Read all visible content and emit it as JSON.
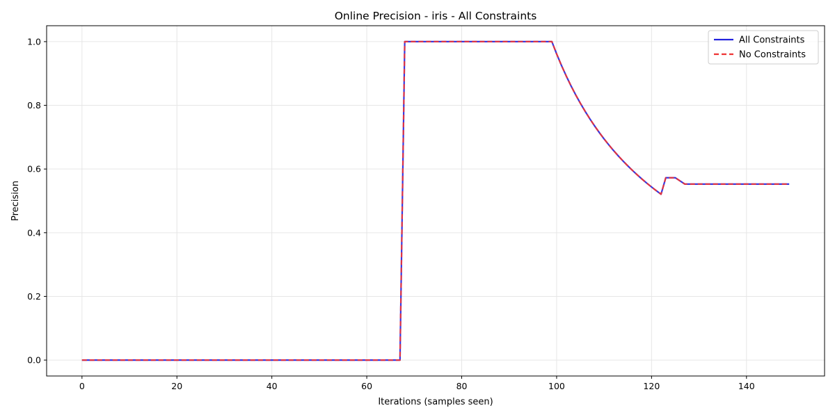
{
  "chart_data": {
    "type": "line",
    "title": "Online Precision - iris - All Constraints",
    "xlabel": "Iterations (samples seen)",
    "ylabel": "Precision",
    "xlim": [
      -7.45,
      156.45
    ],
    "ylim": [
      -0.05,
      1.05
    ],
    "xticks": [
      0,
      20,
      40,
      60,
      80,
      100,
      120,
      140
    ],
    "yticks": [
      0.0,
      0.2,
      0.4,
      0.6,
      0.8,
      1.0
    ],
    "xtick_labels": [
      "0",
      "20",
      "40",
      "60",
      "80",
      "100",
      "120",
      "140"
    ],
    "ytick_labels": [
      "0.0",
      "0.2",
      "0.4",
      "0.6",
      "0.8",
      "1.0"
    ],
    "grid": true,
    "legend_position": "top-right",
    "series": [
      {
        "name": "All Constraints",
        "color": "#2222dd",
        "style": "solid",
        "x": [
          0,
          67,
          68,
          99,
          100,
          101,
          102,
          103,
          104,
          105,
          106,
          107,
          108,
          109,
          110,
          111,
          112,
          113,
          114,
          115,
          116,
          117,
          118,
          119,
          120,
          121,
          122,
          123,
          125,
          127,
          149
        ],
        "y": [
          0.0,
          0.0,
          1.0,
          1.0,
          0.9615,
          0.9259,
          0.8929,
          0.8621,
          0.8333,
          0.8065,
          0.7813,
          0.7576,
          0.7353,
          0.7143,
          0.6944,
          0.6757,
          0.6579,
          0.641,
          0.625,
          0.6098,
          0.5952,
          0.5814,
          0.5682,
          0.5556,
          0.5435,
          0.5319,
          0.5208,
          0.5726,
          0.5726,
          0.5527,
          0.5527
        ]
      },
      {
        "name": "No Constraints",
        "color": "#ee3333",
        "style": "dashed",
        "x": [
          0,
          67,
          68,
          99,
          100,
          101,
          102,
          103,
          104,
          105,
          106,
          107,
          108,
          109,
          110,
          111,
          112,
          113,
          114,
          115,
          116,
          117,
          118,
          119,
          120,
          121,
          122,
          123,
          125,
          127,
          149
        ],
        "y": [
          0.0,
          0.0,
          1.0,
          1.0,
          0.9615,
          0.9259,
          0.8929,
          0.8621,
          0.8333,
          0.8065,
          0.7813,
          0.7576,
          0.7353,
          0.7143,
          0.6944,
          0.6757,
          0.6579,
          0.641,
          0.625,
          0.6098,
          0.5952,
          0.5814,
          0.5682,
          0.5556,
          0.5435,
          0.5319,
          0.5208,
          0.5726,
          0.5726,
          0.5527,
          0.5527
        ]
      }
    ]
  }
}
